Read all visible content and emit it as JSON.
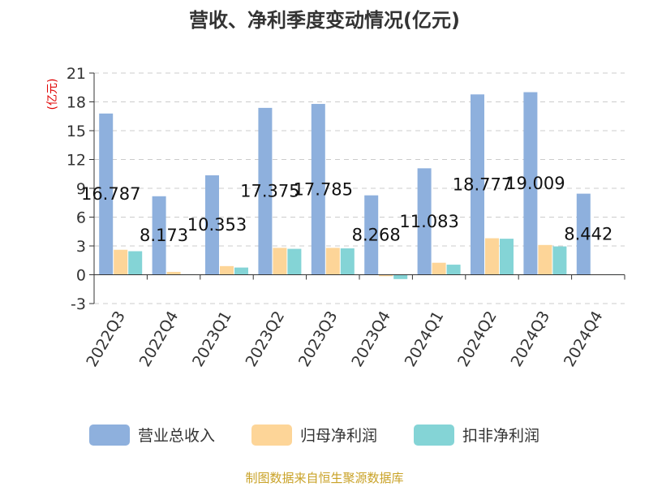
{
  "chart_data": {
    "type": "bar",
    "title": "营收、净利季度变动情况(亿元)",
    "ylabel": "(亿元)",
    "ylim": [
      -3,
      21
    ],
    "yticks": [
      -3,
      0,
      3,
      6,
      9,
      12,
      15,
      18,
      21
    ],
    "grid": true,
    "legend_position": "bottom",
    "categories": [
      "2022Q3",
      "2022Q4",
      "2023Q1",
      "2023Q2",
      "2023Q3",
      "2023Q4",
      "2024Q1",
      "2024Q2",
      "2024Q3",
      "2024Q4"
    ],
    "series": [
      {
        "name": "营业总收入",
        "color": "#8eb0dd",
        "values": [
          16.787,
          8.173,
          10.353,
          17.375,
          17.785,
          8.268,
          11.083,
          18.777,
          19.009,
          8.442
        ]
      },
      {
        "name": "归母净利润",
        "color": "#fdd598",
        "values": [
          2.6,
          0.3,
          0.9,
          2.8,
          2.8,
          -0.15,
          1.25,
          3.8,
          3.1,
          0.05
        ]
      },
      {
        "name": "扣非净利润",
        "color": "#84d4d6",
        "values": [
          2.45,
          0.05,
          0.75,
          2.7,
          2.75,
          -0.45,
          1.05,
          3.75,
          2.95,
          0.05
        ]
      }
    ],
    "data_labels": [
      "16.787",
      "8.173",
      "10.353",
      "17.375",
      "17.785",
      "8.268",
      "11.083",
      "18.777",
      "19.009",
      "8.442"
    ]
  },
  "footer": {
    "text": "制图数据来自恒生聚源数据库",
    "color": "#c9a227"
  },
  "colors": {
    "axis": "#333333",
    "grid": "#cccccc",
    "unit_label": "#e00000"
  }
}
